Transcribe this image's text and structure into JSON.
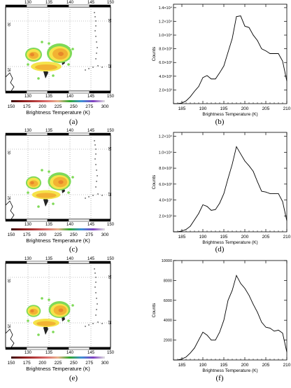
{
  "colors": {
    "cloud_warm": "#f2b233",
    "cloud_orange": "#e8882a",
    "cloud_yellow": "#f5e34a",
    "cloud_green": "#7ed957",
    "line": "#000000",
    "grid": "#888888"
  },
  "map_panels": [
    {
      "id": "a",
      "caption": "(a)",
      "lon_ticks": [
        "130",
        "135",
        "140",
        "145",
        "150"
      ],
      "lat_ticks_left": [
        "30",
        "25"
      ],
      "lat_ticks_right": [
        "30",
        "25"
      ],
      "colorbar_ticks": [
        "150",
        "175",
        "200",
        "225",
        "250",
        "275",
        "300"
      ],
      "colorbar_title": "Brightness Temperature (K)"
    },
    {
      "id": "c",
      "caption": "(c)",
      "lon_ticks": [
        "130",
        "135",
        "140",
        "145",
        "150"
      ],
      "lat_ticks_left": [
        "30",
        "25"
      ],
      "lat_ticks_right": [
        "30",
        "25"
      ],
      "colorbar_ticks": [
        "150",
        "175",
        "200",
        "225",
        "250",
        "275",
        "300"
      ],
      "colorbar_title": "Brightness Temperature (K)"
    },
    {
      "id": "e",
      "caption": "(e)",
      "lon_ticks": [
        "130",
        "135",
        "140",
        "145",
        "150"
      ],
      "lat_ticks_left": [
        "30",
        "25"
      ],
      "lat_ticks_right": [
        "30",
        "25"
      ],
      "colorbar_ticks": [
        "150",
        "175",
        "200",
        "225",
        "250",
        "275",
        "300"
      ],
      "colorbar_title": "Brightness Temperature (K)"
    }
  ],
  "chart_data": [
    {
      "id": "b",
      "caption": "(b)",
      "type": "line",
      "xlabel": "Brightness Temperature (K)",
      "ylabel": "Counts",
      "xlim": [
        183,
        210
      ],
      "ylim": [
        0,
        14500
      ],
      "xticks": [
        185,
        190,
        195,
        200,
        205,
        210
      ],
      "xtick_labels": [
        "185",
        "190",
        "195",
        "200",
        "205",
        "210"
      ],
      "yticks": [
        2000,
        4000,
        6000,
        8000,
        10000,
        12000,
        14000
      ],
      "ytick_labels": [
        "2.0×10³",
        "4.0×10³",
        "6.0×10³",
        "8.0×10³",
        "1.0×10⁴",
        "1.2×10⁴",
        "1.4×10⁴"
      ],
      "series": [
        {
          "x": [
            183,
            184,
            185,
            186,
            187,
            188,
            189,
            190,
            191,
            192,
            193,
            194,
            195,
            196,
            197,
            198,
            199,
            200,
            201,
            202,
            203,
            204,
            205,
            206,
            207,
            208,
            209,
            210
          ],
          "y": [
            0,
            0,
            100,
            400,
            1000,
            1800,
            2500,
            3800,
            4100,
            3600,
            3600,
            4500,
            5500,
            7500,
            9500,
            12700,
            12800,
            11300,
            11100,
            10000,
            9200,
            8000,
            7700,
            7300,
            7300,
            7300,
            6200,
            3300
          ]
        }
      ]
    },
    {
      "id": "d",
      "caption": "(d)",
      "type": "line",
      "xlabel": "Brightness Temperature (K)",
      "ylabel": "Counts",
      "xlim": [
        183,
        210
      ],
      "ylim": [
        0,
        12500
      ],
      "xticks": [
        185,
        190,
        195,
        200,
        205,
        210
      ],
      "xtick_labels": [
        "185",
        "190",
        "195",
        "200",
        "205",
        "210"
      ],
      "yticks": [
        2000,
        4000,
        6000,
        8000,
        10000,
        12000
      ],
      "ytick_labels": [
        "2.0×10³",
        "4.0×10³",
        "6.0×10³",
        "8.0×10³",
        "1.0×10⁴",
        "1.2×10⁴"
      ],
      "series": [
        {
          "x": [
            183,
            184,
            185,
            186,
            187,
            188,
            189,
            190,
            191,
            192,
            193,
            194,
            195,
            196,
            197,
            198,
            199,
            200,
            201,
            202,
            203,
            204,
            205,
            206,
            207,
            208,
            209,
            210
          ],
          "y": [
            0,
            0,
            100,
            300,
            700,
            1500,
            2300,
            3400,
            3200,
            2700,
            2800,
            3600,
            4800,
            6700,
            8500,
            10700,
            9800,
            8900,
            8300,
            7600,
            6300,
            5100,
            5000,
            4800,
            4800,
            4800,
            3800,
            1400
          ]
        }
      ]
    },
    {
      "id": "f",
      "caption": "(f)",
      "type": "line",
      "xlabel": "Brightness Temperature (K)",
      "ylabel": "Counts",
      "xlim": [
        183,
        210
      ],
      "ylim": [
        0,
        10000
      ],
      "xticks": [
        185,
        190,
        195,
        200,
        205,
        210
      ],
      "xtick_labels": [
        "185",
        "190",
        "195",
        "200",
        "205",
        "210"
      ],
      "yticks": [
        2000,
        4000,
        6000,
        8000,
        10000
      ],
      "ytick_labels": [
        "2000",
        "4000",
        "6000",
        "8000",
        "10000"
      ],
      "series": [
        {
          "x": [
            183,
            184,
            185,
            186,
            187,
            188,
            189,
            190,
            191,
            192,
            193,
            194,
            195,
            196,
            197,
            198,
            199,
            200,
            201,
            202,
            203,
            204,
            205,
            206,
            207,
            208,
            209,
            210
          ],
          "y": [
            0,
            0,
            100,
            300,
            700,
            1200,
            2000,
            2800,
            2500,
            2000,
            2000,
            2800,
            4000,
            6000,
            7000,
            8500,
            7700,
            7200,
            6500,
            5600,
            4800,
            3800,
            3300,
            3200,
            2900,
            3000,
            2700,
            800
          ]
        }
      ]
    }
  ]
}
